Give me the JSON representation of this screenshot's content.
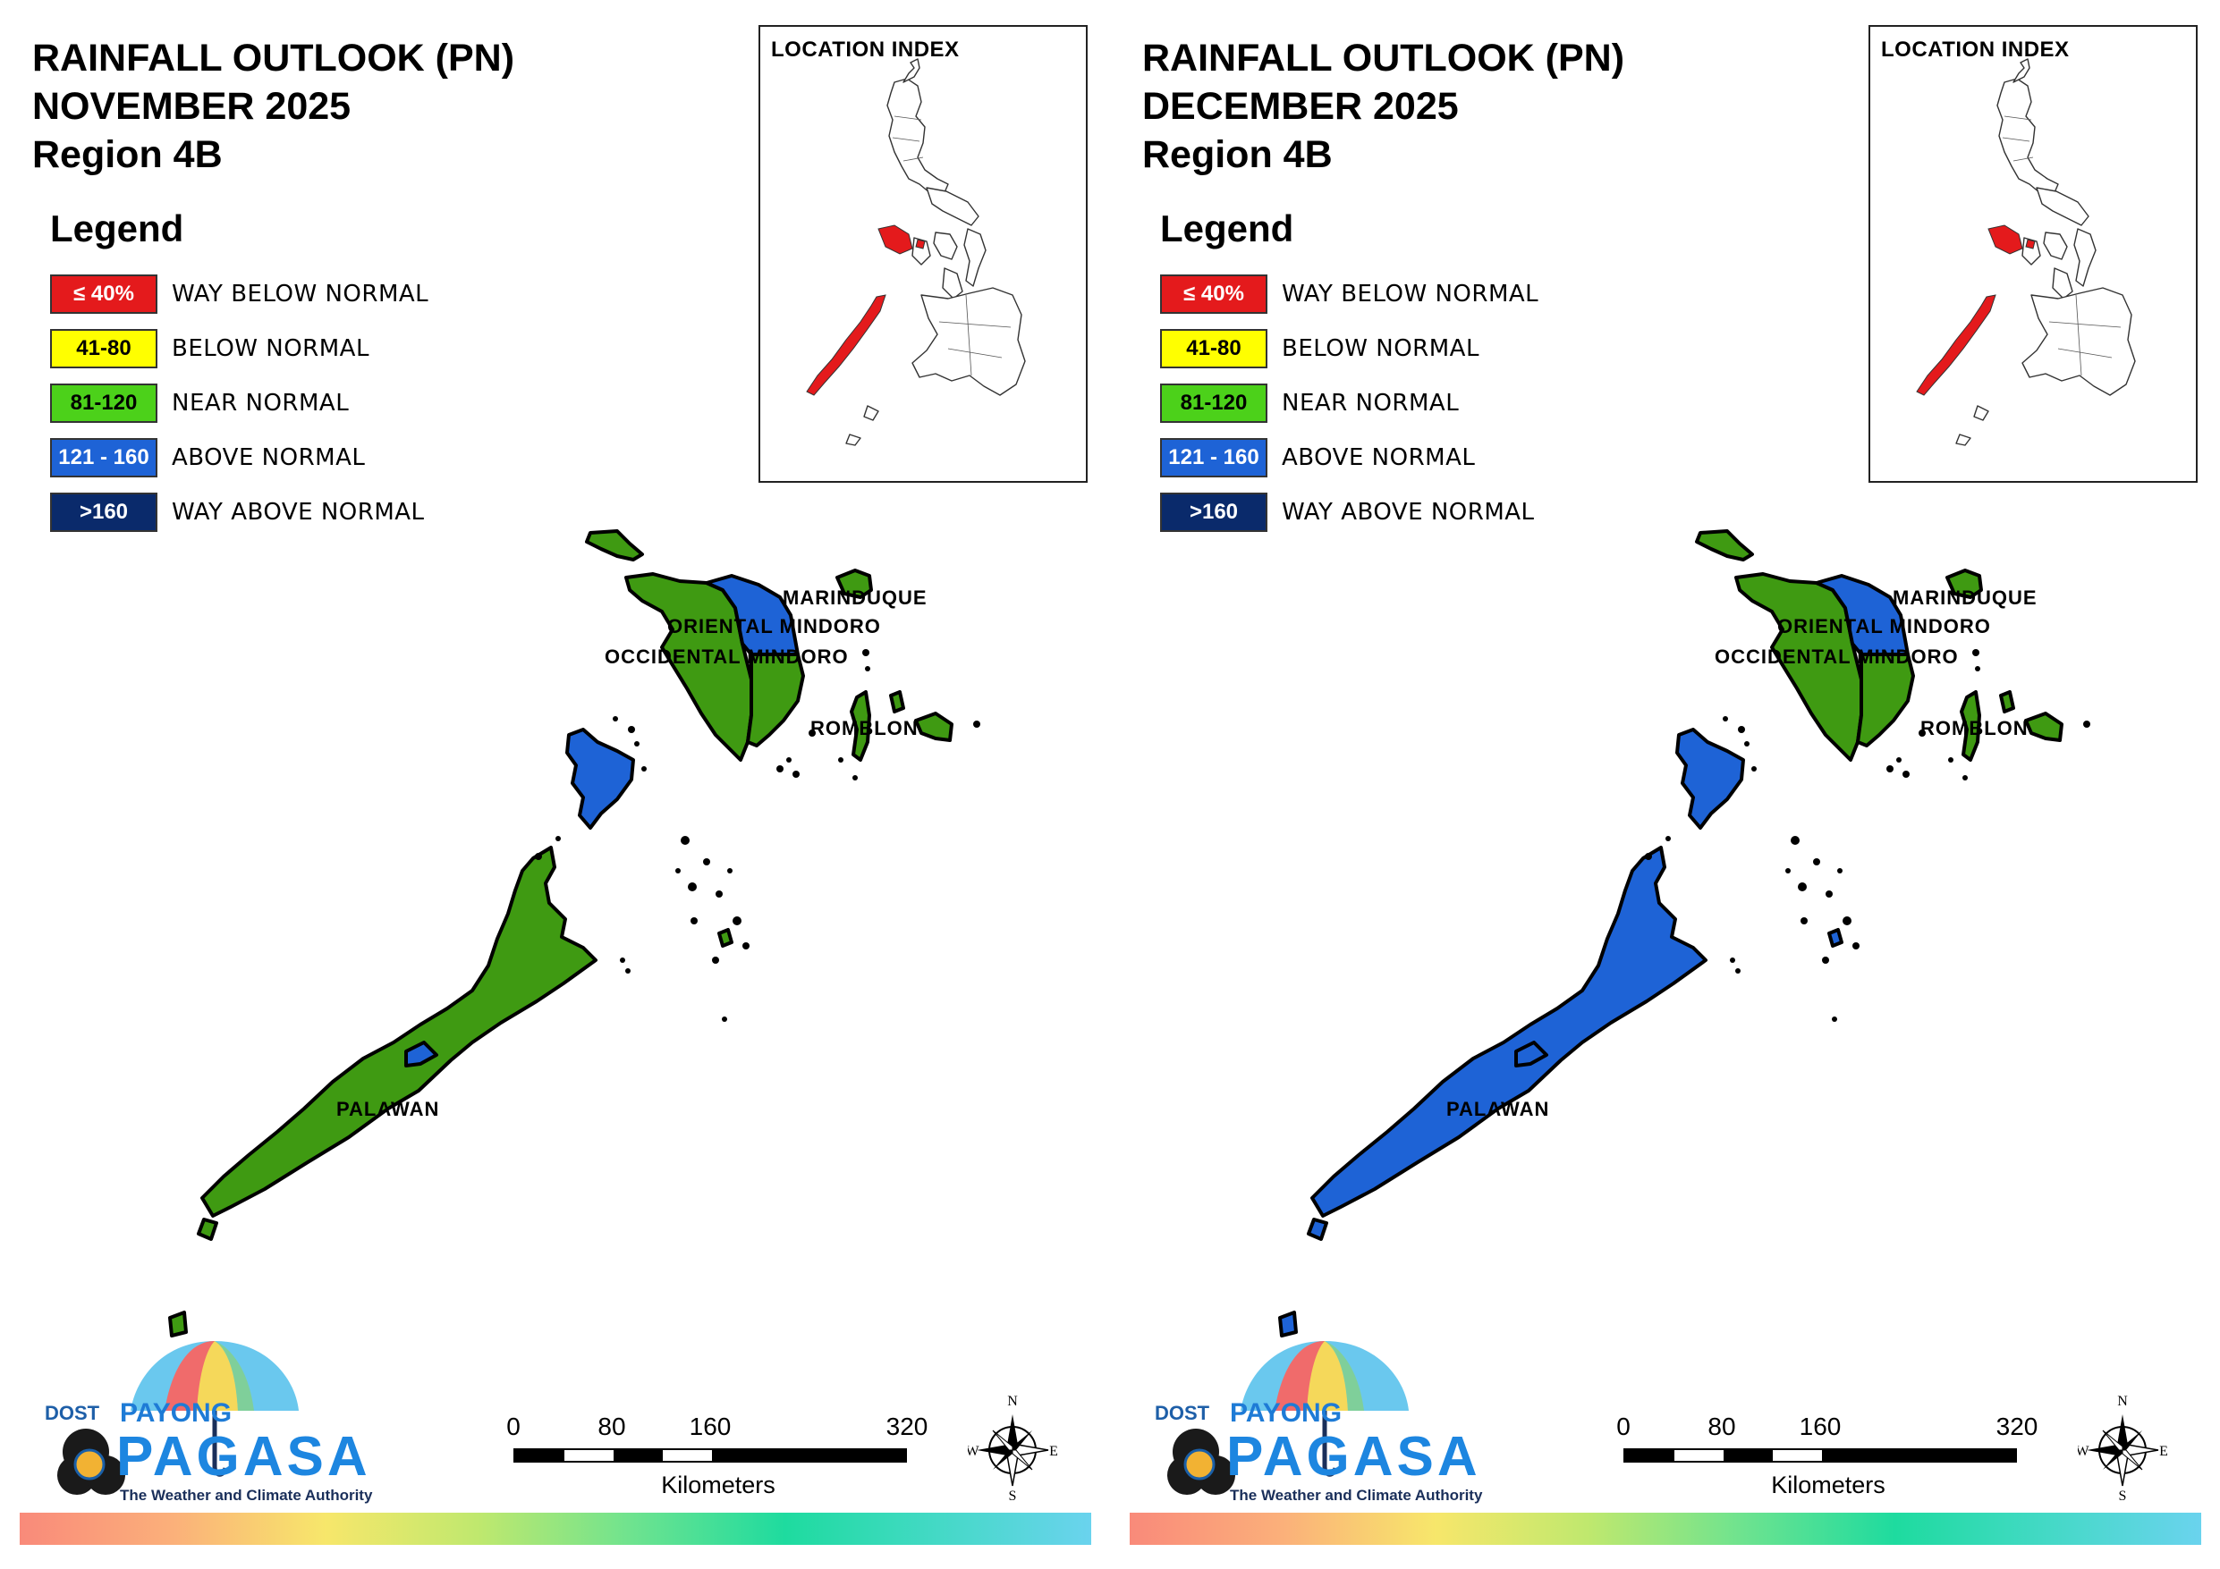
{
  "panels": [
    {
      "id": "november",
      "title_lines": [
        "RAINFALL OUTLOOK (PN)",
        "NOVEMBER 2025",
        "Region 4B"
      ],
      "fills": {
        "occidental_mindoro": "#3f9a12",
        "oriental_mindoro_north": "#1e63d6",
        "oriental_mindoro_south": "#3f9a12",
        "lubang": "#3f9a12",
        "marinduque": "#3f9a12",
        "romblon": "#3f9a12",
        "palawan_north": "#1e63d6",
        "palawan_main": "#3f9a12",
        "palawan_band": "#1e63d6",
        "cuyo": "#3f9a12"
      }
    },
    {
      "id": "december",
      "title_lines": [
        "RAINFALL OUTLOOK (PN)",
        "DECEMBER 2025",
        "Region 4B"
      ],
      "fills": {
        "occidental_mindoro": "#3f9a12",
        "oriental_mindoro_north": "#1e63d6",
        "oriental_mindoro_south": "#3f9a12",
        "lubang": "#3f9a12",
        "marinduque": "#3f9a12",
        "romblon": "#3f9a12",
        "palawan_north": "#1e63d6",
        "palawan_main": "#1e63d6",
        "palawan_band": "#1e63d6",
        "cuyo": "#1e63d6"
      }
    }
  ],
  "legend": {
    "heading": "Legend",
    "items": [
      {
        "range": "≤ 40%",
        "label": "WAY BELOW NORMAL",
        "color": "#e41a1c",
        "text_color": "#ffffff"
      },
      {
        "range": "41-80",
        "label": "BELOW NORMAL",
        "color": "#ffff00",
        "text_color": "#000000"
      },
      {
        "range": "81-120",
        "label": "NEAR NORMAL",
        "color": "#4cd11a",
        "text_color": "#000000"
      },
      {
        "range": "121 - 160",
        "label": "ABOVE NORMAL",
        "color": "#1e63d6",
        "text_color": "#ffffff"
      },
      {
        "range": ">160",
        "label": "WAY ABOVE NORMAL",
        "color": "#0a2a6b",
        "text_color": "#ffffff"
      }
    ]
  },
  "location_index": {
    "title": "LOCATION INDEX",
    "highlight_color": "#e41a1c"
  },
  "map_labels": {
    "marinduque": "MARINDUQUE",
    "oriental_mindoro": "ORIENTAL MINDORO",
    "occidental_mindoro": "OCCIDENTAL MINDORO",
    "romblon": "ROMBLON",
    "palawan": "PALAWAN"
  },
  "scale": {
    "ticks": [
      "0",
      "80",
      "160",
      "320"
    ],
    "unit": "Kilometers"
  },
  "compass": {
    "n": "N",
    "s": "S",
    "e": "E",
    "w": "W"
  },
  "logo": {
    "dost": "DOST",
    "payong": "PAYONG",
    "pagasa": "PAGASA",
    "tagline": "The Weather and Climate Authority"
  }
}
